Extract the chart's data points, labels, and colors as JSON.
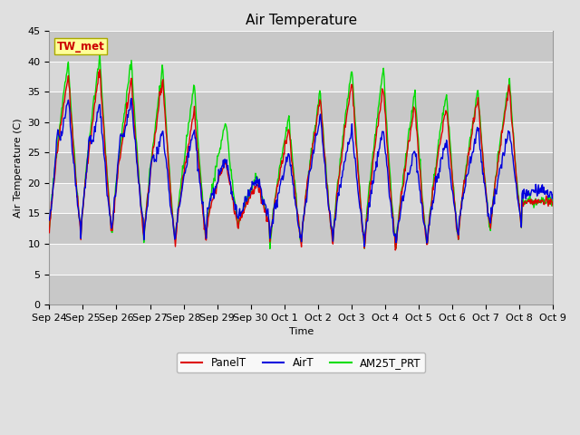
{
  "title": "Air Temperature",
  "ylabel": "Air Temperature (C)",
  "xlabel": "Time",
  "ylim": [
    0,
    45
  ],
  "yticks": [
    0,
    5,
    10,
    15,
    20,
    25,
    30,
    35,
    40,
    45
  ],
  "fig_bg_color": "#e0e0e0",
  "plot_bg_color": "#d0d0d0",
  "plot_band_color": "#c0c0c0",
  "annotation_text": "TW_met",
  "annotation_color": "#cc0000",
  "annotation_bg": "#ffff99",
  "annotation_border": "#aaaa00",
  "line_panel_color": "#dd0000",
  "line_air_color": "#0000dd",
  "line_am25_color": "#00dd00",
  "legend_labels": [
    "PanelT",
    "AirT",
    "AM25T_PRT"
  ],
  "x_tick_labels": [
    "Sep 24",
    "Sep 25",
    "Sep 26",
    "Sep 27",
    "Sep 28",
    "Sep 29",
    "Sep 30",
    "Oct 1",
    "Oct 2",
    "Oct 3",
    "Oct 4",
    "Oct 5",
    "Oct 6",
    "Oct 7",
    "Oct 8",
    "Oct 9"
  ],
  "title_fontsize": 11,
  "axis_fontsize": 8,
  "tick_fontsize": 8
}
